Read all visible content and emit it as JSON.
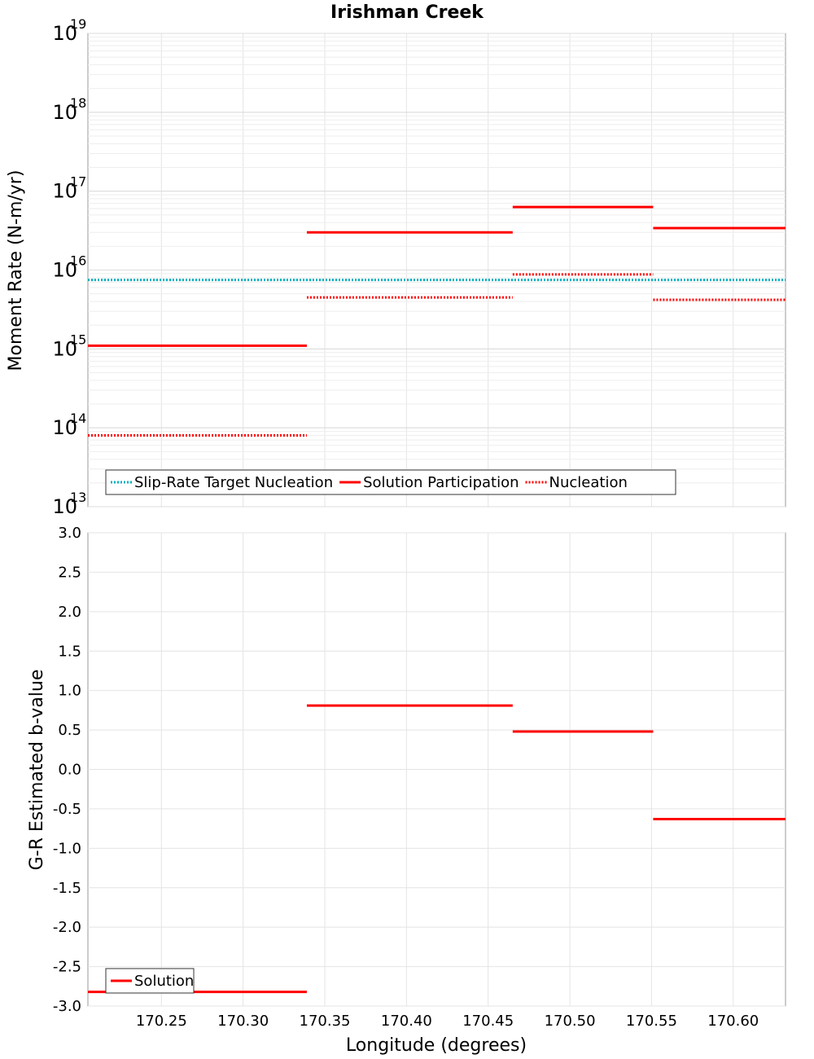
{
  "figure": {
    "title": "Irishman Creek",
    "xlabel": "Longitude (degrees)"
  },
  "chart_data": [
    {
      "type": "line",
      "panel": "top",
      "ylabel": "Moment Rate (N-m/yr)",
      "yscale": "log",
      "ylim": [
        10000000000000.0,
        1e+19
      ],
      "xlim": [
        170.205,
        170.632
      ],
      "y_tick_labels": [
        {
          "value": 10000000000000.0,
          "base": "10",
          "exp": "13"
        },
        {
          "value": 100000000000000.0,
          "base": "10",
          "exp": "14"
        },
        {
          "value": 1000000000000000.0,
          "base": "10",
          "exp": "15"
        },
        {
          "value": 1e+16,
          "base": "10",
          "exp": "16"
        },
        {
          "value": 1e+17,
          "base": "10",
          "exp": "17"
        },
        {
          "value": 1e+18,
          "base": "10",
          "exp": "18"
        },
        {
          "value": 1e+19,
          "base": "10",
          "exp": "19"
        }
      ],
      "grid": true,
      "legend_position": "bottom-left",
      "series": [
        {
          "name": "Slip-Rate Target Nucleation",
          "color": "#00b0c0",
          "style": "dotted",
          "segments": [
            {
              "x0": 170.205,
              "x1": 170.632,
              "y": 7500000000000000.0
            }
          ]
        },
        {
          "name": "Solution Participation",
          "color": "#ff0000",
          "style": "solid",
          "segments": [
            {
              "x0": 170.205,
              "x1": 170.339,
              "y": 1100000000000000.0
            },
            {
              "x0": 170.339,
              "x1": 170.465,
              "y": 3e+16
            },
            {
              "x0": 170.465,
              "x1": 170.551,
              "y": 6.3e+16
            },
            {
              "x0": 170.551,
              "x1": 170.632,
              "y": 3.4e+16
            }
          ]
        },
        {
          "name": "Nucleation",
          "color": "#ff0000",
          "style": "dotted",
          "segments": [
            {
              "x0": 170.205,
              "x1": 170.339,
              "y": 80000000000000.0
            },
            {
              "x0": 170.339,
              "x1": 170.465,
              "y": 4500000000000000.0
            },
            {
              "x0": 170.465,
              "x1": 170.551,
              "y": 8800000000000000.0
            },
            {
              "x0": 170.551,
              "x1": 170.632,
              "y": 4200000000000000.0
            }
          ]
        }
      ]
    },
    {
      "type": "line",
      "panel": "bottom",
      "ylabel": "G-R Estimated b-value",
      "yscale": "linear",
      "ylim": [
        -3.0,
        3.0
      ],
      "xlim": [
        170.205,
        170.632
      ],
      "y_ticks": [
        3.0,
        2.5,
        2.0,
        1.5,
        1.0,
        0.5,
        0.0,
        -0.5,
        -1.0,
        -1.5,
        -2.0,
        -2.5,
        -3.0
      ],
      "y_tick_labels": [
        "3.0",
        "2.5",
        "2.0",
        "1.5",
        "1.0",
        "0.5",
        "0.0",
        "-0.5",
        "-1.0",
        "-1.5",
        "-2.0",
        "-2.5",
        "-3.0"
      ],
      "x_ticks": [
        170.25,
        170.3,
        170.35,
        170.4,
        170.45,
        170.5,
        170.55,
        170.6
      ],
      "x_tick_labels": [
        "170.25",
        "170.30",
        "170.35",
        "170.40",
        "170.45",
        "170.50",
        "170.55",
        "170.60"
      ],
      "grid": true,
      "legend_position": "bottom-left",
      "series": [
        {
          "name": "Solution",
          "color": "#ff0000",
          "style": "solid",
          "segments": [
            {
              "x0": 170.205,
              "x1": 170.339,
              "y": -2.82
            },
            {
              "x0": 170.339,
              "x1": 170.465,
              "y": 0.81
            },
            {
              "x0": 170.465,
              "x1": 170.551,
              "y": 0.48
            },
            {
              "x0": 170.551,
              "x1": 170.632,
              "y": -0.63
            }
          ]
        }
      ]
    }
  ]
}
